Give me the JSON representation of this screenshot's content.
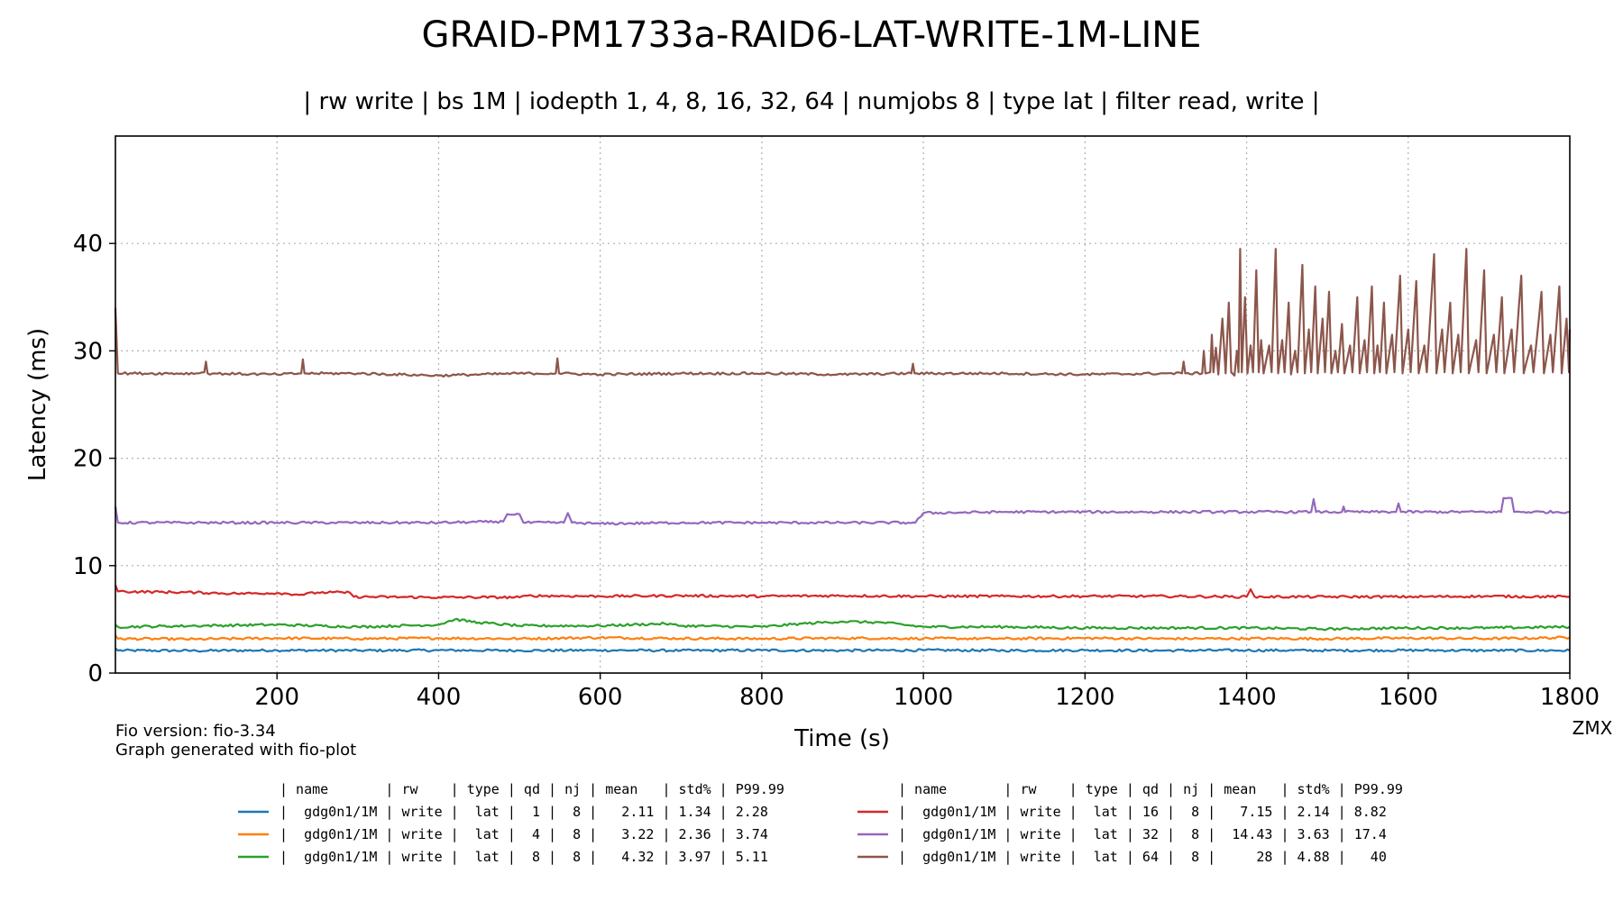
{
  "chart_data": {
    "type": "line",
    "title": "GRAID-PM1733a-RAID6-LAT-WRITE-1M-LINE",
    "subtitle": "| rw write | bs 1M | iodepth 1, 4, 8, 16, 32, 64 | numjobs 8 | type lat | filter read, write |",
    "xlabel": "Time (s)",
    "ylabel": "Latency (ms)",
    "xlim": [
      0,
      1800
    ],
    "ylim": [
      0,
      50
    ],
    "xticks": [
      200,
      400,
      600,
      800,
      1000,
      1200,
      1400,
      1600,
      1800
    ],
    "yticks": [
      0,
      10,
      20,
      30,
      40
    ],
    "grid": true,
    "corner_label": "ZMX",
    "footnotes": [
      "Fio version: fio-3.34",
      "Graph generated with fio-plot"
    ],
    "legend_header": "| name       | rw    | type | qd | nj | mean   | std% | P99.99",
    "series": [
      {
        "legend": "|  gdg0n1/1M | write |  lat |  1 |  8 |   2.11 | 1.34 | 2.28",
        "color": "#1f77b4",
        "base": 2.11,
        "points": [
          [
            0,
            2.3
          ],
          [
            3,
            2.1
          ],
          [
            100,
            2.08
          ],
          [
            200,
            2.12
          ],
          [
            300,
            2.1
          ],
          [
            400,
            2.12
          ],
          [
            500,
            2.1
          ],
          [
            600,
            2.12
          ],
          [
            700,
            2.1
          ],
          [
            800,
            2.12
          ],
          [
            900,
            2.1
          ],
          [
            1000,
            2.13
          ],
          [
            1100,
            2.1
          ],
          [
            1200,
            2.12
          ],
          [
            1300,
            2.1
          ],
          [
            1400,
            2.12
          ],
          [
            1500,
            2.1
          ],
          [
            1600,
            2.12
          ],
          [
            1700,
            2.1
          ],
          [
            1800,
            2.1
          ]
        ]
      },
      {
        "legend": "|  gdg0n1/1M | write |  lat |  4 |  8 |   3.22 | 2.36 | 3.74",
        "color": "#ff7f0e",
        "base": 3.22,
        "points": [
          [
            0,
            3.5
          ],
          [
            3,
            3.2
          ],
          [
            100,
            3.15
          ],
          [
            200,
            3.25
          ],
          [
            300,
            3.2
          ],
          [
            400,
            3.25
          ],
          [
            500,
            3.2
          ],
          [
            600,
            3.3
          ],
          [
            700,
            3.22
          ],
          [
            800,
            3.2
          ],
          [
            900,
            3.25
          ],
          [
            1000,
            3.22
          ],
          [
            1100,
            3.2
          ],
          [
            1200,
            3.25
          ],
          [
            1300,
            3.2
          ],
          [
            1400,
            3.22
          ],
          [
            1500,
            3.2
          ],
          [
            1600,
            3.25
          ],
          [
            1700,
            3.2
          ],
          [
            1800,
            3.3
          ]
        ]
      },
      {
        "legend": "|  gdg0n1/1M | write |  lat |  8 |  8 |   4.32 | 3.97 | 5.11",
        "color": "#2ca02c",
        "base": 4.32,
        "points": [
          [
            0,
            4.5
          ],
          [
            3,
            4.3
          ],
          [
            100,
            4.4
          ],
          [
            200,
            4.5
          ],
          [
            300,
            4.3
          ],
          [
            400,
            4.5
          ],
          [
            420,
            5.0
          ],
          [
            450,
            4.7
          ],
          [
            500,
            4.4
          ],
          [
            600,
            4.4
          ],
          [
            680,
            4.6
          ],
          [
            700,
            4.4
          ],
          [
            800,
            4.3
          ],
          [
            850,
            4.6
          ],
          [
            900,
            4.8
          ],
          [
            950,
            4.7
          ],
          [
            1000,
            4.3
          ],
          [
            1100,
            4.3
          ],
          [
            1200,
            4.2
          ],
          [
            1300,
            4.2
          ],
          [
            1400,
            4.2
          ],
          [
            1500,
            4.1
          ],
          [
            1600,
            4.2
          ],
          [
            1700,
            4.2
          ],
          [
            1800,
            4.3
          ]
        ]
      },
      {
        "legend": "|  gdg0n1/1M | write |  lat | 16 |  8 |   7.15 | 2.14 | 8.82",
        "color": "#d62728",
        "base": 7.15,
        "points": [
          [
            0,
            8.2
          ],
          [
            3,
            7.6
          ],
          [
            100,
            7.5
          ],
          [
            150,
            7.4
          ],
          [
            200,
            7.45
          ],
          [
            230,
            7.3
          ],
          [
            250,
            7.5
          ],
          [
            290,
            7.5
          ],
          [
            295,
            7.1
          ],
          [
            400,
            7.05
          ],
          [
            500,
            7.05
          ],
          [
            510,
            7.2
          ],
          [
            600,
            7.15
          ],
          [
            700,
            7.2
          ],
          [
            800,
            7.15
          ],
          [
            900,
            7.2
          ],
          [
            1000,
            7.15
          ],
          [
            1100,
            7.15
          ],
          [
            1200,
            7.15
          ],
          [
            1300,
            7.15
          ],
          [
            1400,
            7.1
          ],
          [
            1405,
            7.8
          ],
          [
            1410,
            7.1
          ],
          [
            1500,
            7.1
          ],
          [
            1600,
            7.1
          ],
          [
            1700,
            7.15
          ],
          [
            1800,
            7.1
          ]
        ]
      },
      {
        "legend": "|  gdg0n1/1M | write |  lat | 32 |  8 |  14.43 | 3.63 | 17.4",
        "color": "#9467bd",
        "base": 14.43,
        "points": [
          [
            0,
            15.5
          ],
          [
            3,
            14.0
          ],
          [
            100,
            14.0
          ],
          [
            200,
            14.0
          ],
          [
            300,
            14.0
          ],
          [
            400,
            14.0
          ],
          [
            480,
            14.1
          ],
          [
            485,
            14.8
          ],
          [
            500,
            14.8
          ],
          [
            505,
            14.0
          ],
          [
            555,
            14.0
          ],
          [
            560,
            14.9
          ],
          [
            565,
            14.0
          ],
          [
            600,
            13.9
          ],
          [
            700,
            14.0
          ],
          [
            800,
            14.0
          ],
          [
            900,
            14.0
          ],
          [
            990,
            14.0
          ],
          [
            1000,
            14.9
          ],
          [
            1100,
            15.0
          ],
          [
            1200,
            15.0
          ],
          [
            1300,
            15.0
          ],
          [
            1400,
            15.0
          ],
          [
            1480,
            15.0
          ],
          [
            1483,
            16.2
          ],
          [
            1486,
            15.0
          ],
          [
            1518,
            15.0
          ],
          [
            1520,
            15.5
          ],
          [
            1522,
            15.0
          ],
          [
            1585,
            15.0
          ],
          [
            1588,
            15.8
          ],
          [
            1591,
            15.0
          ],
          [
            1700,
            15.0
          ],
          [
            1715,
            15.0
          ],
          [
            1718,
            16.3
          ],
          [
            1728,
            16.3
          ],
          [
            1731,
            15.0
          ],
          [
            1800,
            15.0
          ]
        ]
      },
      {
        "legend": "|  gdg0n1/1M | write |  lat | 64 |  8 |     28 | 4.88 |   40",
        "color": "#8c564b",
        "base": 28,
        "points": [
          [
            0,
            34.0
          ],
          [
            3,
            27.9
          ],
          [
            100,
            27.9
          ],
          [
            110,
            28.0
          ],
          [
            112,
            29.0
          ],
          [
            114,
            27.9
          ],
          [
            200,
            27.8
          ],
          [
            230,
            27.9
          ],
          [
            232,
            29.2
          ],
          [
            234,
            27.9
          ],
          [
            300,
            27.9
          ],
          [
            400,
            27.7
          ],
          [
            500,
            27.9
          ],
          [
            545,
            27.9
          ],
          [
            547,
            29.3
          ],
          [
            549,
            27.9
          ],
          [
            600,
            27.8
          ],
          [
            700,
            27.9
          ],
          [
            800,
            27.9
          ],
          [
            900,
            27.8
          ],
          [
            985,
            27.9
          ],
          [
            987,
            28.8
          ],
          [
            989,
            27.9
          ],
          [
            1100,
            27.9
          ],
          [
            1200,
            27.8
          ],
          [
            1300,
            27.9
          ],
          [
            1320,
            27.9
          ],
          [
            1322,
            29.0
          ],
          [
            1324,
            27.9
          ],
          [
            1345,
            27.9
          ],
          [
            1347,
            30.0
          ],
          [
            1349,
            27.9
          ],
          [
            1355,
            28.0
          ],
          [
            1357,
            31.5
          ],
          [
            1359,
            28.0
          ],
          [
            1362,
            30.3
          ],
          [
            1365,
            27.8
          ],
          [
            1370,
            33.0
          ],
          [
            1374,
            27.9
          ],
          [
            1378,
            34.5
          ],
          [
            1381,
            28.0
          ],
          [
            1385,
            27.7
          ],
          [
            1388,
            30.0
          ],
          [
            1390,
            28.0
          ],
          [
            1392,
            39.5
          ],
          [
            1394,
            28.0
          ],
          [
            1398,
            35.0
          ],
          [
            1401,
            27.9
          ],
          [
            1405,
            30.5
          ],
          [
            1408,
            28.0
          ],
          [
            1412,
            37.5
          ],
          [
            1415,
            28.0
          ],
          [
            1418,
            31.0
          ],
          [
            1421,
            27.9
          ],
          [
            1428,
            30.5
          ],
          [
            1431,
            28.0
          ],
          [
            1436,
            39.5
          ],
          [
            1439,
            27.9
          ],
          [
            1444,
            31.0
          ],
          [
            1447,
            28.0
          ],
          [
            1452,
            34.5
          ],
          [
            1455,
            27.8
          ],
          [
            1460,
            30.0
          ],
          [
            1463,
            28.0
          ],
          [
            1469,
            38.0
          ],
          [
            1472,
            27.9
          ],
          [
            1477,
            32.0
          ],
          [
            1480,
            28.0
          ],
          [
            1485,
            36.0
          ],
          [
            1488,
            27.9
          ],
          [
            1494,
            33.0
          ],
          [
            1497,
            28.0
          ],
          [
            1502,
            35.5
          ],
          [
            1505,
            27.9
          ],
          [
            1510,
            30.0
          ],
          [
            1513,
            28.0
          ],
          [
            1518,
            32.5
          ],
          [
            1521,
            27.9
          ],
          [
            1528,
            30.5
          ],
          [
            1531,
            28.0
          ],
          [
            1537,
            35.0
          ],
          [
            1540,
            27.9
          ],
          [
            1546,
            31.0
          ],
          [
            1549,
            28.0
          ],
          [
            1555,
            36.0
          ],
          [
            1558,
            27.9
          ],
          [
            1562,
            30.5
          ],
          [
            1565,
            28.0
          ],
          [
            1570,
            34.5
          ],
          [
            1573,
            27.9
          ],
          [
            1580,
            31.5
          ],
          [
            1583,
            28.0
          ],
          [
            1590,
            37.0
          ],
          [
            1593,
            27.9
          ],
          [
            1600,
            32.0
          ],
          [
            1603,
            28.0
          ],
          [
            1610,
            36.5
          ],
          [
            1613,
            27.9
          ],
          [
            1620,
            30.5
          ],
          [
            1623,
            28.0
          ],
          [
            1632,
            39.0
          ],
          [
            1635,
            27.9
          ],
          [
            1642,
            32.0
          ],
          [
            1645,
            28.0
          ],
          [
            1652,
            34.5
          ],
          [
            1655,
            27.9
          ],
          [
            1662,
            31.5
          ],
          [
            1665,
            28.0
          ],
          [
            1672,
            39.5
          ],
          [
            1675,
            27.9
          ],
          [
            1684,
            31.0
          ],
          [
            1687,
            28.0
          ],
          [
            1694,
            37.5
          ],
          [
            1697,
            27.9
          ],
          [
            1706,
            31.5
          ],
          [
            1709,
            28.0
          ],
          [
            1716,
            35.0
          ],
          [
            1719,
            27.9
          ],
          [
            1728,
            32.0
          ],
          [
            1731,
            28.0
          ],
          [
            1740,
            37.0
          ],
          [
            1743,
            27.9
          ],
          [
            1752,
            30.5
          ],
          [
            1755,
            28.0
          ],
          [
            1765,
            35.5
          ],
          [
            1768,
            27.9
          ],
          [
            1776,
            31.5
          ],
          [
            1779,
            28.0
          ],
          [
            1787,
            36.0
          ],
          [
            1790,
            27.9
          ],
          [
            1796,
            33.0
          ],
          [
            1799,
            28.0
          ],
          [
            1800,
            32.0
          ]
        ]
      }
    ]
  }
}
